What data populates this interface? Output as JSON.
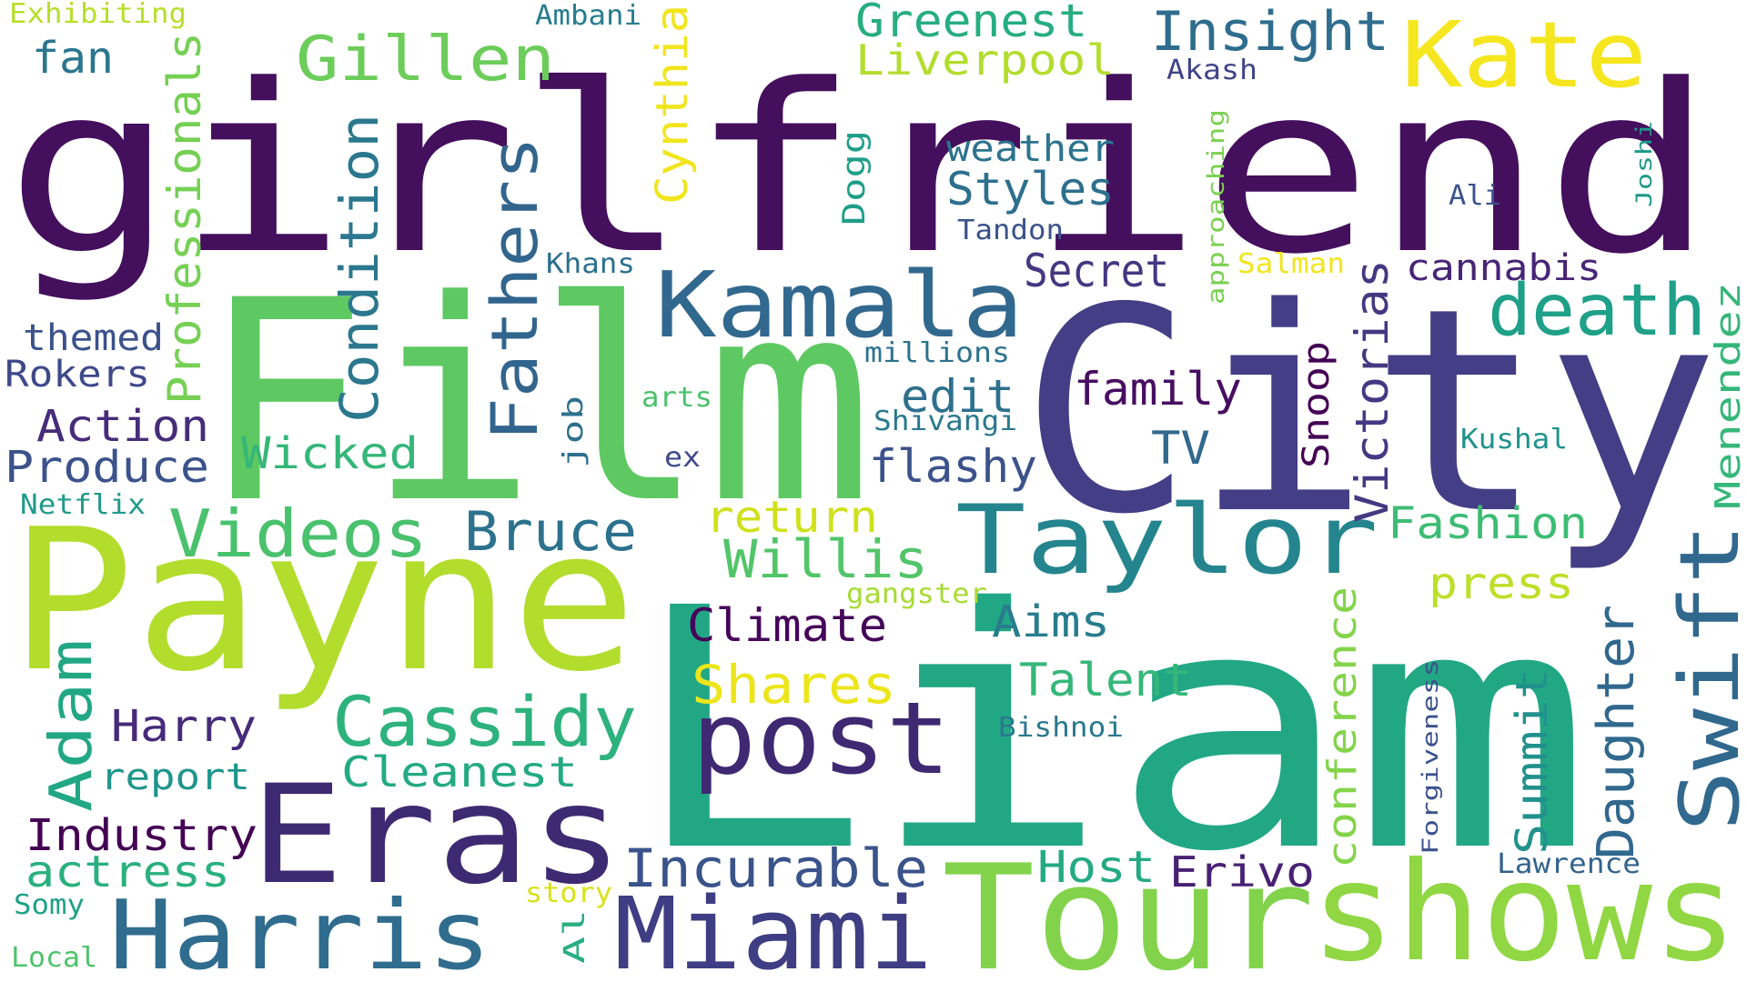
{
  "words": [
    {
      "text": "girlfriend",
      "color": "#440f5c"
    },
    {
      "text": "City",
      "color": "#433e85"
    },
    {
      "text": "Film",
      "color": "#5ec962"
    },
    {
      "text": "Liam",
      "color": "#22a785"
    },
    {
      "text": "Payne",
      "color": "#b2dd2d"
    },
    {
      "text": "Tour",
      "color": "#82d34b"
    },
    {
      "text": "shows",
      "color": "#90d743"
    },
    {
      "text": "Eras",
      "color": "#3e2a72"
    },
    {
      "text": "Kate",
      "color": "#f5e61f"
    },
    {
      "text": "Kamala",
      "color": "#31688e"
    },
    {
      "text": "post",
      "color": "#3f2972"
    },
    {
      "text": "Taylor",
      "color": "#25858e"
    },
    {
      "text": "Swift",
      "color": "#31688e"
    },
    {
      "text": "Harris",
      "color": "#2f6c8e"
    },
    {
      "text": "Miami",
      "color": "#3f3d83"
    },
    {
      "text": "Gillen",
      "color": "#6ccd5a"
    },
    {
      "text": "Fathers",
      "color": "#32658e"
    },
    {
      "text": "Professionals",
      "color": "#75d054"
    },
    {
      "text": "Condition",
      "color": "#2b788e"
    },
    {
      "text": "Cynthia",
      "color": "#f1e51d"
    },
    {
      "text": "Videos",
      "color": "#4ac16d"
    },
    {
      "text": "Bruce",
      "color": "#2c728e"
    },
    {
      "text": "Willis",
      "color": "#52c569"
    },
    {
      "text": "Cassidy",
      "color": "#2db27d"
    },
    {
      "text": "Adam",
      "color": "#21a784"
    },
    {
      "text": "Insight",
      "color": "#2e6d8e"
    },
    {
      "text": "Greenest",
      "color": "#26ad81"
    },
    {
      "text": "Liverpool",
      "color": "#b2dd2d"
    },
    {
      "text": "death",
      "color": "#1fa088"
    },
    {
      "text": "Secret",
      "color": "#453781"
    },
    {
      "text": "cannabis",
      "color": "#482576"
    },
    {
      "text": "Styles",
      "color": "#2e6f8e"
    },
    {
      "text": "weather",
      "color": "#2c738e"
    },
    {
      "text": "Incurable",
      "color": "#3a538b"
    },
    {
      "text": "Climate",
      "color": "#450559"
    },
    {
      "text": "Shares",
      "color": "#ece51b"
    },
    {
      "text": "Talent",
      "color": "#35b779"
    },
    {
      "text": "Daughter",
      "color": "#31688e"
    },
    {
      "text": "Summit",
      "color": "#21918c"
    },
    {
      "text": "conference",
      "color": "#84d44b"
    },
    {
      "text": "Victorias",
      "color": "#453882"
    },
    {
      "text": "Fashion",
      "color": "#3dbc74"
    },
    {
      "text": "press",
      "color": "#bddf26"
    },
    {
      "text": "family",
      "color": "#470e61"
    },
    {
      "text": "edit",
      "color": "#2d708e"
    },
    {
      "text": "flashy",
      "color": "#3b528b"
    },
    {
      "text": "TV",
      "color": "#31688e"
    },
    {
      "text": "return",
      "color": "#d0e11c"
    },
    {
      "text": "Aims",
      "color": "#287c8e"
    },
    {
      "text": "Host",
      "color": "#24aa83"
    },
    {
      "text": "Erivo",
      "color": "#482173"
    },
    {
      "text": "Menendez",
      "color": "#35b779"
    },
    {
      "text": "Action",
      "color": "#472c7a"
    },
    {
      "text": "Produce",
      "color": "#3b528b"
    },
    {
      "text": "Wicked",
      "color": "#35b779"
    },
    {
      "text": "Harry",
      "color": "#472a7a"
    },
    {
      "text": "Cleanest",
      "color": "#24aa83"
    },
    {
      "text": "report",
      "color": "#1f958b"
    },
    {
      "text": "Industry",
      "color": "#440154"
    },
    {
      "text": "actress",
      "color": "#2ab07f"
    },
    {
      "text": "themed",
      "color": "#3b528b"
    },
    {
      "text": "Rokers",
      "color": "#3e4989"
    },
    {
      "text": "fan",
      "color": "#2a768e"
    },
    {
      "text": "Exhibiting",
      "color": "#b8de29"
    },
    {
      "text": "Ambani",
      "color": "#287c8e"
    },
    {
      "text": "Akash",
      "color": "#414487"
    },
    {
      "text": "Dogg",
      "color": "#1f9e89"
    },
    {
      "text": "Tandon",
      "color": "#3b528b"
    },
    {
      "text": "Khans",
      "color": "#2d708e"
    },
    {
      "text": "Salman",
      "color": "#f1e51d"
    },
    {
      "text": "approaching",
      "color": "#7ad151"
    },
    {
      "text": "Joshi",
      "color": "#1f9a8a"
    },
    {
      "text": "Ali",
      "color": "#3b528b"
    },
    {
      "text": "millions",
      "color": "#2c728e"
    },
    {
      "text": "arts",
      "color": "#4ac16d"
    },
    {
      "text": "Shivangi",
      "color": "#2a788e"
    },
    {
      "text": "ex",
      "color": "#3e4a89"
    },
    {
      "text": "job",
      "color": "#2d708e"
    },
    {
      "text": "Snoop",
      "color": "#440154"
    },
    {
      "text": "Kushal",
      "color": "#20928c"
    },
    {
      "text": "Netflix",
      "color": "#1f9a8a"
    },
    {
      "text": "gangster",
      "color": "#a8db34"
    },
    {
      "text": "Bishnoi",
      "color": "#2a788e"
    },
    {
      "text": "Forgiveness",
      "color": "#3b528b"
    },
    {
      "text": "Lawrence",
      "color": "#33638d"
    },
    {
      "text": "story",
      "color": "#d8e219"
    },
    {
      "text": "Al",
      "color": "#29af7f"
    },
    {
      "text": "Somy",
      "color": "#1fa187"
    },
    {
      "text": "Local",
      "color": "#4ec36b"
    }
  ]
}
